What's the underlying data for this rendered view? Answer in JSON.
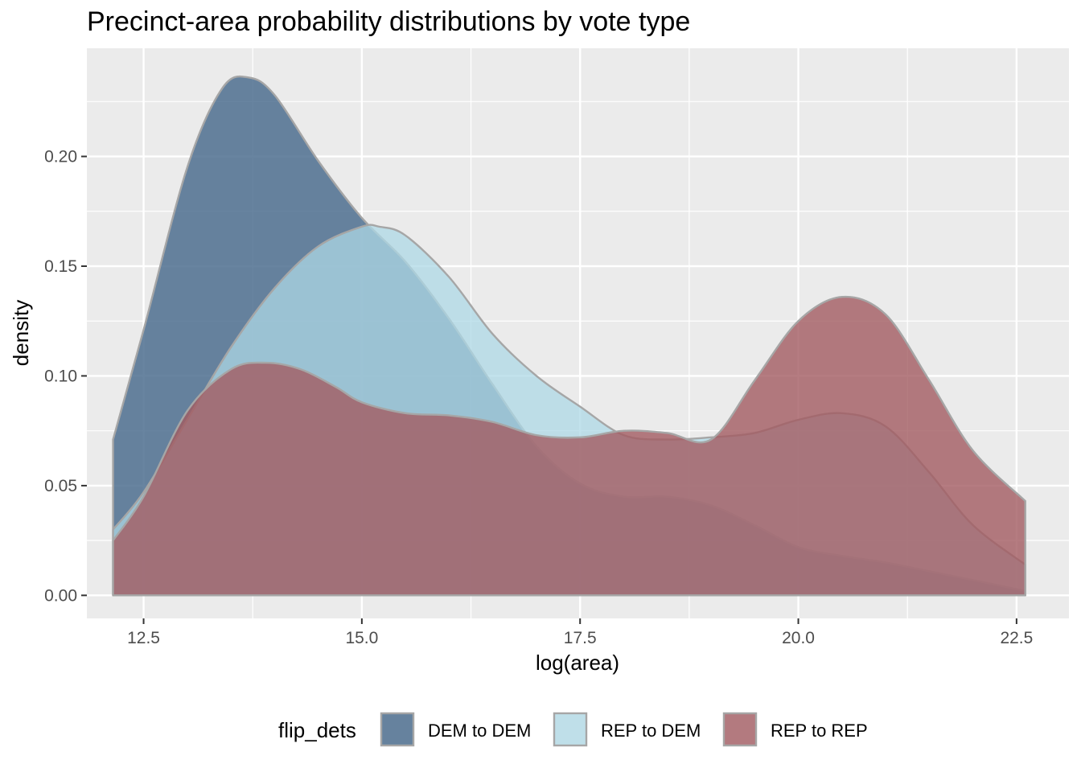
{
  "chart_data": {
    "type": "area",
    "subtype": "density",
    "title": "Precinct-area probability distributions by vote type",
    "xlabel": "log(area)",
    "ylabel": "density",
    "xlim": [
      11.85,
      23.1
    ],
    "ylim": [
      -0.0105,
      0.2493
    ],
    "x_ticks": [
      12.5,
      15.0,
      17.5,
      20.0,
      22.5
    ],
    "x_tick_labels": [
      "12.5",
      "15.0",
      "17.5",
      "20.0",
      "22.5"
    ],
    "y_ticks": [
      0.0,
      0.05,
      0.1,
      0.15,
      0.2
    ],
    "y_tick_labels": [
      "0.00",
      "0.05",
      "0.10",
      "0.15",
      "0.20"
    ],
    "grid": true,
    "legend": {
      "title": "flip_dets",
      "position": "bottom"
    },
    "outline_color": "#a6a6a6",
    "series": [
      {
        "name": "DEM to DEM",
        "color": "#4e6f8f",
        "opacity": 0.85,
        "x": [
          12.15,
          12.5,
          13.0,
          13.4,
          13.7,
          14.0,
          14.5,
          15.0,
          15.5,
          16.0,
          16.5,
          17.0,
          17.5,
          18.0,
          18.5,
          19.0,
          19.5,
          20.0,
          20.5,
          21.0,
          21.5,
          22.0,
          22.6
        ],
        "y": [
          0.071,
          0.121,
          0.195,
          0.231,
          0.236,
          0.228,
          0.198,
          0.172,
          0.152,
          0.126,
          0.096,
          0.068,
          0.051,
          0.045,
          0.045,
          0.041,
          0.032,
          0.022,
          0.018,
          0.015,
          0.011,
          0.007,
          0.002
        ]
      },
      {
        "name": "REP to DEM",
        "color": "#add8e6",
        "opacity": 0.75,
        "x": [
          12.15,
          12.5,
          13.0,
          13.5,
          14.0,
          14.5,
          15.0,
          15.2,
          15.5,
          16.0,
          16.5,
          17.0,
          17.5,
          18.0,
          18.5,
          19.0,
          19.5,
          20.0,
          20.5,
          21.0,
          21.5,
          22.0,
          22.6
        ],
        "y": [
          0.03,
          0.047,
          0.08,
          0.113,
          0.14,
          0.159,
          0.168,
          0.168,
          0.164,
          0.145,
          0.119,
          0.1,
          0.086,
          0.073,
          0.071,
          0.072,
          0.074,
          0.08,
          0.083,
          0.077,
          0.056,
          0.032,
          0.014
        ]
      },
      {
        "name": "REP to REP",
        "color": "#a25b61",
        "opacity": 0.8,
        "x": [
          12.15,
          12.5,
          13.0,
          13.5,
          13.9,
          14.3,
          14.7,
          15.0,
          15.5,
          16.0,
          16.5,
          17.0,
          17.5,
          18.0,
          18.5,
          19.0,
          19.5,
          20.0,
          20.5,
          21.0,
          21.5,
          22.0,
          22.6
        ],
        "y": [
          0.025,
          0.045,
          0.084,
          0.103,
          0.106,
          0.103,
          0.095,
          0.088,
          0.083,
          0.082,
          0.079,
          0.073,
          0.072,
          0.075,
          0.074,
          0.071,
          0.098,
          0.125,
          0.136,
          0.128,
          0.098,
          0.066,
          0.043
        ]
      }
    ]
  }
}
